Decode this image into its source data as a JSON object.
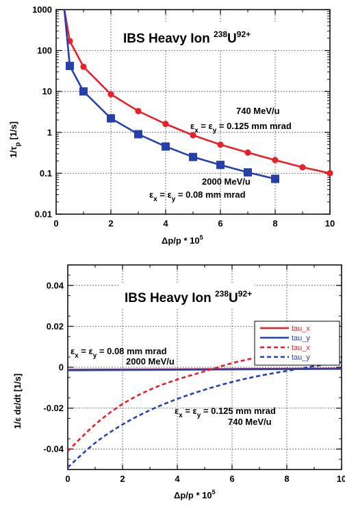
{
  "chart_data": [
    {
      "type": "line",
      "title_parts": [
        "IBS Heavy Ion ",
        "238",
        "U",
        "92+"
      ],
      "xlabel_parts": [
        "Δp/p * 10",
        "5"
      ],
      "ylabel_parts": [
        "1/τ",
        "p",
        " [1/s]"
      ],
      "scale_y": "log",
      "xlim": [
        0,
        10
      ],
      "ylim": [
        0.01,
        1000
      ],
      "grid": true,
      "x_ticks": [
        "0",
        "2",
        "4",
        "6",
        "8",
        "10"
      ],
      "y_ticks": [
        "0.01",
        "0.1",
        "1",
        "10",
        "100",
        "1000"
      ],
      "series": [
        {
          "color": "#e8202a",
          "marker": "circle",
          "x": [
            0.3,
            0.5,
            1,
            2,
            3,
            4,
            5,
            6,
            7,
            8,
            9,
            10
          ],
          "values": [
            1000,
            170,
            40,
            8.5,
            3.3,
            1.6,
            0.85,
            0.5,
            0.32,
            0.21,
            0.14,
            0.1
          ]
        },
        {
          "color": "#2540a8",
          "marker": "square",
          "x": [
            0.3,
            0.5,
            1,
            2,
            3,
            4,
            5,
            6,
            7,
            8
          ],
          "values": [
            1000,
            42,
            10,
            2.2,
            0.9,
            0.45,
            0.25,
            0.16,
            0.105,
            0.073
          ]
        }
      ],
      "annotations": [
        {
          "id": "red-energy",
          "parts": [
            "740 MeV/u"
          ]
        },
        {
          "id": "red-emit",
          "parts": [
            "ε",
            "x",
            " = ε",
            "y",
            " = 0.125 mm mrad"
          ]
        },
        {
          "id": "blue-energy",
          "parts": [
            "2000 MeV/u"
          ]
        },
        {
          "id": "blue-emit",
          "parts": [
            "ε",
            "x",
            " = ε",
            "y",
            " = 0.08 mm mrad"
          ]
        }
      ]
    },
    {
      "type": "line",
      "title_parts": [
        "IBS Heavy Ion ",
        "238",
        "U",
        "92+"
      ],
      "xlabel_parts": [
        "Δp/p * 10",
        "5"
      ],
      "ylabel": "1/ε dε/dt [1/s]",
      "xlim": [
        0,
        10
      ],
      "ylim": [
        -0.05,
        0.05
      ],
      "grid": true,
      "x_ticks": [
        "0",
        "2",
        "4",
        "6",
        "8",
        "10"
      ],
      "y_ticks": [
        "-0.04",
        "-0.02",
        "0",
        "0.02",
        "0.04"
      ],
      "series": [
        {
          "name": "tau_x",
          "color": "#e8202a",
          "dash": false,
          "x": [
            0,
            10
          ],
          "values": [
            -0.0012,
            -0.0006
          ]
        },
        {
          "name": "tau_y",
          "color": "#2540a8",
          "dash": false,
          "x": [
            0,
            10
          ],
          "values": [
            -0.0015,
            -0.0008
          ]
        },
        {
          "name": "tau_x",
          "color": "#e8202a",
          "dash": true,
          "x": [
            0,
            1,
            2,
            3,
            4,
            5,
            6,
            7,
            8,
            9,
            10
          ],
          "values": [
            -0.041,
            -0.028,
            -0.018,
            -0.011,
            -0.006,
            -0.002,
            0.002,
            0.005,
            0.0075,
            0.0095,
            0.011
          ]
        },
        {
          "name": "tau_y",
          "color": "#2540a8",
          "dash": true,
          "x": [
            0,
            1,
            2,
            3,
            4,
            5,
            6,
            7,
            8,
            9,
            10
          ],
          "values": [
            -0.049,
            -0.037,
            -0.028,
            -0.021,
            -0.0155,
            -0.011,
            -0.0072,
            -0.0042,
            -0.0018,
            0.0005,
            0.0025
          ]
        }
      ],
      "legend_position": "top-right",
      "annotations": [
        {
          "id": "blue-emit",
          "parts": [
            "ε",
            "x",
            " = ε",
            "y",
            " = 0.08 mm mrad"
          ]
        },
        {
          "id": "blue-energy",
          "parts": [
            "2000 MeV/u"
          ]
        },
        {
          "id": "red-emit",
          "parts": [
            "ε",
            "x",
            " = ε",
            "y",
            " = 0.125 mm mrad"
          ]
        },
        {
          "id": "red-energy",
          "parts": [
            "740 MeV/u"
          ]
        }
      ]
    }
  ]
}
